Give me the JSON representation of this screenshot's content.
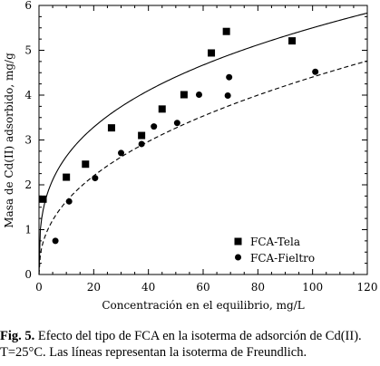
{
  "chart_data": {
    "type": "scatter",
    "xlabel": "Concentración en el equilibrio, mg/L",
    "ylabel": "Masa de Cd(II) adsorbido, mg/g",
    "xlim": [
      0,
      120
    ],
    "ylim": [
      0,
      6
    ],
    "xticks": [
      0,
      20,
      40,
      60,
      80,
      100,
      120
    ],
    "yticks": [
      0,
      1,
      2,
      3,
      4,
      5,
      6
    ],
    "grid": false,
    "legend_position": "bottom-right",
    "series": [
      {
        "name": "FCA-Tela",
        "marker": "square",
        "x": [
          1.5,
          10,
          17,
          26.5,
          37.5,
          45,
          53,
          63,
          68.5,
          92.5
        ],
        "y": [
          1.68,
          2.17,
          2.46,
          3.27,
          3.1,
          3.69,
          4.01,
          4.94,
          5.42,
          5.21
        ]
      },
      {
        "name": "FCA-Fieltro",
        "marker": "circle",
        "x": [
          6,
          11,
          20.5,
          30,
          37.5,
          42,
          50.5,
          58.5,
          69,
          69.5,
          101
        ],
        "y": [
          0.75,
          1.63,
          2.15,
          2.71,
          2.91,
          3.3,
          3.38,
          4.01,
          3.99,
          4.4,
          4.52
        ]
      }
    ],
    "fit_lines": [
      {
        "series": "FCA-Tela",
        "model": "Freundlich",
        "style": "solid",
        "K": 1.26,
        "n_inv": 0.32
      },
      {
        "series": "FCA-Fieltro",
        "model": "Freundlich",
        "style": "dashed",
        "K": 0.605,
        "n_inv": 0.431
      }
    ]
  },
  "caption": {
    "label": "Fig. 5.",
    "line1": " Efecto del tipo de FCA en la isoterma de adsorción de Cd(II).",
    "line2": "T=25°C. Las líneas representan la isoterma de Freundlich."
  }
}
